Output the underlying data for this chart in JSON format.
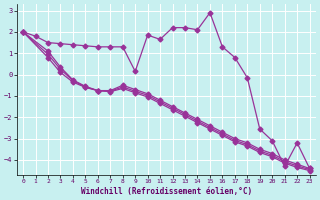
{
  "xlabel": "Windchill (Refroidissement éolien,°C)",
  "background_color": "#c8f0f0",
  "line_color": "#993399",
  "xlim": [
    -0.5,
    23.5
  ],
  "ylim": [
    -4.7,
    3.3
  ],
  "yticks": [
    -4,
    -3,
    -2,
    -1,
    0,
    1,
    2,
    3
  ],
  "xticks": [
    0,
    1,
    2,
    3,
    4,
    5,
    6,
    7,
    8,
    9,
    10,
    11,
    12,
    13,
    14,
    15,
    16,
    17,
    18,
    19,
    20,
    21,
    22,
    23
  ],
  "series1_x": [
    0,
    1,
    2,
    3,
    4,
    5,
    6,
    7,
    8,
    9,
    10,
    11,
    12,
    13,
    14,
    15,
    16,
    17,
    18,
    19,
    20,
    21,
    22,
    23
  ],
  "series1_y": [
    2.0,
    1.8,
    1.5,
    1.45,
    1.4,
    1.35,
    1.3,
    1.3,
    1.3,
    0.15,
    1.85,
    1.65,
    2.2,
    2.2,
    2.1,
    2.9,
    1.3,
    0.8,
    -0.15,
    -2.55,
    -3.1,
    -4.3,
    -3.2,
    -4.4
  ],
  "series2_x": [
    0,
    2,
    3,
    4,
    5,
    6,
    7,
    8,
    9,
    10,
    11,
    12,
    13,
    14,
    15,
    16,
    17,
    18,
    19,
    20,
    21,
    22,
    23
  ],
  "series2_y": [
    2.0,
    1.1,
    0.35,
    -0.25,
    -0.55,
    -0.75,
    -0.75,
    -0.5,
    -0.7,
    -0.9,
    -1.2,
    -1.5,
    -1.8,
    -2.1,
    -2.4,
    -2.7,
    -3.0,
    -3.2,
    -3.5,
    -3.7,
    -4.0,
    -4.2,
    -4.4
  ],
  "series3_x": [
    0,
    2,
    3,
    4,
    5,
    6,
    7,
    8,
    9,
    10,
    11,
    12,
    13,
    14,
    15,
    16,
    17,
    18,
    19,
    20,
    21,
    22,
    23
  ],
  "series3_y": [
    2.0,
    0.8,
    0.1,
    -0.35,
    -0.6,
    -0.75,
    -0.8,
    -0.65,
    -0.85,
    -1.05,
    -1.35,
    -1.65,
    -1.95,
    -2.25,
    -2.55,
    -2.85,
    -3.15,
    -3.35,
    -3.65,
    -3.85,
    -4.15,
    -4.35,
    -4.5
  ],
  "series4_x": [
    0,
    2,
    3,
    4,
    5,
    6,
    7,
    8,
    9,
    10,
    11,
    12,
    13,
    14,
    15,
    16,
    17,
    18,
    19,
    20,
    21,
    22,
    23
  ],
  "series4_y": [
    2.0,
    0.95,
    0.25,
    -0.28,
    -0.58,
    -0.75,
    -0.78,
    -0.58,
    -0.78,
    -0.97,
    -1.28,
    -1.57,
    -1.87,
    -2.18,
    -2.48,
    -2.78,
    -3.08,
    -3.28,
    -3.58,
    -3.78,
    -4.08,
    -4.28,
    -4.45
  ]
}
